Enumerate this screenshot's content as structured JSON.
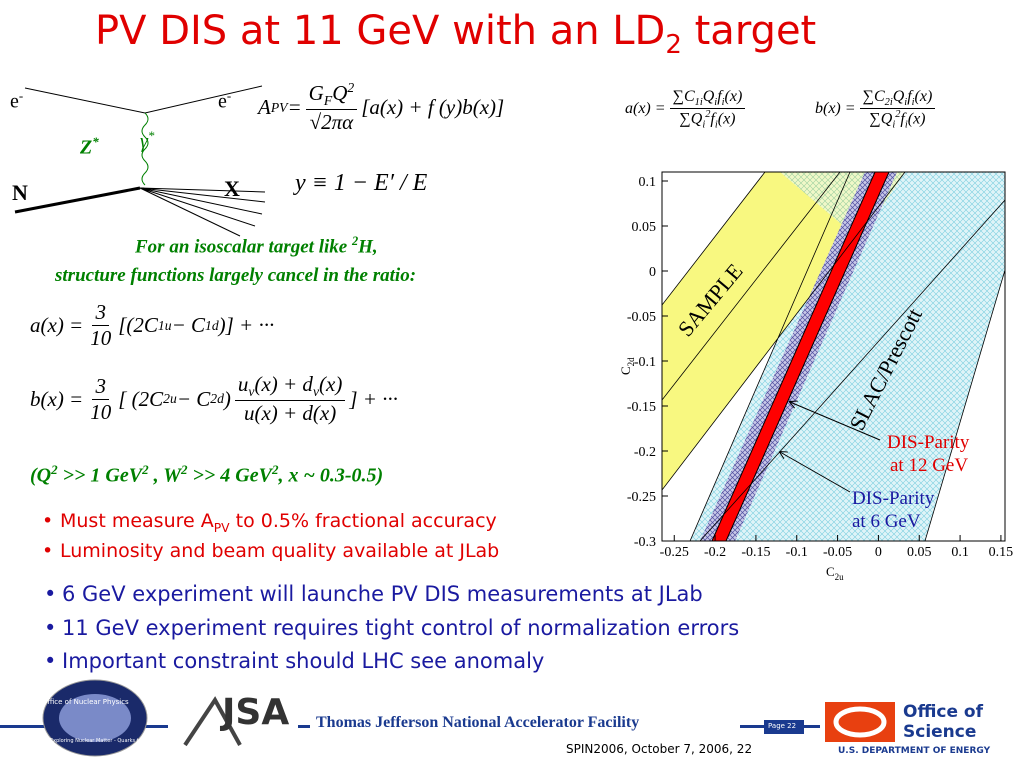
{
  "title": [
    "PV DIS at 11 GeV with an LD",
    {
      "sub": "2"
    },
    " target"
  ],
  "diagram": {
    "e_in": [
      "e",
      {
        "sup": "-"
      }
    ],
    "e_out": [
      "e",
      {
        "sup": "-"
      }
    ],
    "z": [
      "Z",
      {
        "sup": "*"
      }
    ],
    "gamma": [
      "γ",
      {
        "sup": "*"
      }
    ],
    "n": "N",
    "x": "X"
  },
  "equations": {
    "apv": [
      "A",
      {
        "sub": "PV"
      },
      " = ",
      {
        "frac": [
          [
            "G",
            {
              "sub": "F"
            },
            "Q",
            {
              "sup": "2"
            }
          ],
          [
            "√2πα"
          ]
        ]
      },
      " [a(x) + f (y)b(x)]"
    ],
    "y": [
      "y ≡ 1 − E′ / E"
    ],
    "a_sum": [
      "a(x) = ",
      {
        "frac": [
          [
            "∑C",
            {
              "sub": "1i"
            },
            "Q",
            {
              "sub": "i"
            },
            "f",
            {
              "sub": "i"
            },
            "(x)"
          ],
          [
            "∑Q",
            {
              "sub": "i"
            },
            {
              "sup": "2"
            },
            "f",
            {
              "sub": "i"
            },
            "(x)"
          ]
        ]
      }
    ],
    "b_sum": [
      "b(x) = ",
      {
        "frac": [
          [
            "∑C",
            {
              "sub": "2i"
            },
            "Q",
            {
              "sub": "i"
            },
            "f",
            {
              "sub": "i"
            },
            "(x)"
          ],
          [
            "∑Q",
            {
              "sub": "i"
            },
            {
              "sup": "2"
            },
            "f",
            {
              "sub": "i"
            },
            "(x)"
          ]
        ]
      }
    ],
    "a_iso": [
      "a(x) = ",
      {
        "frac": [
          [
            "3"
          ],
          [
            "10"
          ]
        ]
      },
      " [(2C",
      {
        "sub": "1u"
      },
      " − C",
      {
        "sub": "1d"
      },
      ")] + ···"
    ],
    "b_iso": [
      "b(x) = ",
      {
        "frac": [
          [
            "3"
          ],
          [
            "10"
          ]
        ]
      },
      " [ (2C",
      {
        "sub": "2u"
      },
      " − C",
      {
        "sub": "2d"
      },
      ") ",
      {
        "frac": [
          [
            "u",
            {
              "sub": "v"
            },
            "(x) + d",
            {
              "sub": "v"
            },
            "(x)"
          ],
          [
            "u(x) + d(x)"
          ]
        ]
      },
      " ] + ···"
    ]
  },
  "note": [
    [
      "For an isoscalar target like ",
      {
        "sup": "2"
      },
      "H,"
    ],
    [
      "structure functions largely cancel in the ratio:"
    ]
  ],
  "kinematics": [
    "(Q",
    {
      "sup": "2"
    },
    " >> 1 GeV",
    {
      "sup": "2"
    },
    " , W",
    {
      "sup": "2"
    },
    " >> 4 GeV",
    {
      "sup": "2"
    },
    ", x ~ 0.3-0.5)"
  ],
  "bullets_red": [
    [
      "Must measure A",
      {
        "sub": "PV"
      },
      " to 0.5% fractional accuracy"
    ],
    [
      "Luminosity and beam quality available at JLab"
    ]
  ],
  "bullets_blue": [
    [
      "6 GeV experiment will launche PV DIS measurements at JLab"
    ],
    [
      "11 GeV experiment requires tight control of normalization errors"
    ],
    [
      "Important constraint should LHC see anomaly"
    ]
  ],
  "plot": {
    "xlim": [
      -0.265,
      0.155
    ],
    "ylim": [
      -0.3,
      0.11
    ],
    "xticks": [
      -0.25,
      -0.2,
      -0.15,
      -0.1,
      -0.05,
      0,
      0.05,
      0.1,
      0.15
    ],
    "yticks": [
      0.1,
      0.05,
      0,
      -0.05,
      -0.1,
      -0.15,
      -0.2,
      -0.25,
      -0.3
    ],
    "xlabel": [
      "C",
      {
        "sub": "2u"
      }
    ],
    "ylabel": [
      "C",
      {
        "sub": "2d"
      }
    ],
    "band_sample": "SAMPLE",
    "band_slac": "SLAC/Prescott",
    "dis12": [
      "DIS-Parity",
      "at 12 GeV"
    ],
    "dis6": [
      "DIS-Parity",
      "at 6 GeV"
    ]
  },
  "footer": {
    "np_logo": [
      "Office of Nuclear Physics",
      "Exploring Nuclear Matter - Quarks to Stars"
    ],
    "jsa": "JSA",
    "lab": "Thomas Jefferson National Accelerator Facility",
    "page": "Page 22",
    "doe": [
      "Office of",
      "Science",
      "U.S. DEPARTMENT OF ENERGY"
    ],
    "conf": "SPIN2006, October 7, 2006, 22"
  }
}
